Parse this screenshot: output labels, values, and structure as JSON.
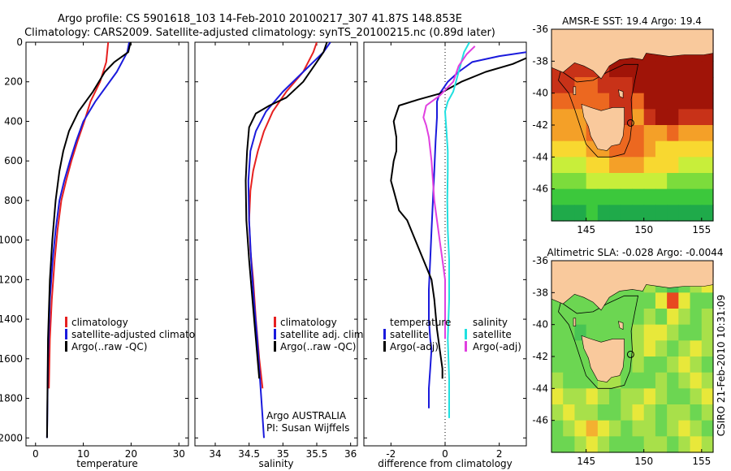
{
  "header": {
    "line1": "Argo profile: CS 5901618_103 14-Feb-2010 20100217_307 41.87S 148.853E",
    "line2": "Climatology: CARS2009. Satellite-adjusted climatology: synTS_20100215.nc (0.89d later)"
  },
  "side_label": "CSIRO 21-Feb-2010 10:31:09",
  "colors": {
    "climatology": "#e62020",
    "satellite": "#1a1adc",
    "argo": "#000000",
    "salinity_satellite": "#20e0e0",
    "salinity_argo": "#e040e0",
    "land": "#f9c99c"
  },
  "chart_data": [
    {
      "type": "line",
      "xlabel": "temperature",
      "x_ticks": [
        "0",
        "10",
        "20",
        "30"
      ],
      "xlim": [
        -2,
        32
      ],
      "y_ticks": [
        "0",
        "200",
        "400",
        "600",
        "800",
        "1000",
        "1200",
        "1400",
        "1600",
        "1800",
        "2000"
      ],
      "ylim": [
        2040,
        0
      ],
      "legend": [
        "climatology",
        "satellite-adjusted climatology",
        "Argo(..raw -QC)"
      ],
      "series": [
        {
          "name": "climatology",
          "color": "climatology",
          "x": [
            15.2,
            14.8,
            13.5,
            11.5,
            10.2,
            8.8,
            7.5,
            6.4,
            5.4,
            4.6,
            4.0,
            3.4,
            3.0,
            2.8
          ],
          "y": [
            0,
            100,
            200,
            300,
            400,
            500,
            600,
            700,
            800,
            950,
            1100,
            1300,
            1500,
            1750
          ]
        },
        {
          "name": "satellite-adjusted climatology",
          "color": "satellite",
          "x": [
            19.6,
            19.2,
            17.0,
            12.5,
            10.0,
            8.5,
            7.2,
            6.0,
            5.0,
            4.2,
            3.6,
            3.0,
            2.6,
            2.4
          ],
          "y": [
            0,
            50,
            150,
            300,
            400,
            500,
            600,
            700,
            800,
            950,
            1100,
            1300,
            1600,
            2000
          ]
        },
        {
          "name": "Argo(..raw -QC)",
          "color": "argo",
          "x": [
            19.9,
            19.4,
            16.5,
            14.5,
            12.0,
            9.0,
            7.0,
            5.8,
            5.0,
            4.2,
            3.5,
            3.0,
            2.6,
            2.4
          ],
          "y": [
            0,
            50,
            100,
            150,
            250,
            350,
            450,
            550,
            650,
            800,
            1000,
            1200,
            1500,
            2000
          ]
        }
      ]
    },
    {
      "type": "line",
      "xlabel": "salinity",
      "x_ticks": [
        "34",
        "34.5",
        "35",
        "35.5",
        "36"
      ],
      "xlim": [
        33.7,
        36.1
      ],
      "y_ticks": [],
      "ylim": [
        2040,
        0
      ],
      "legend": [
        "climatology",
        "satellite adj. clim.",
        "Argo(..raw -QC)"
      ],
      "annotation": [
        "Argo AUSTRALIA",
        "PI: Susan Wijffels"
      ],
      "series": [
        {
          "name": "climatology",
          "color": "climatology",
          "x": [
            35.5,
            35.45,
            35.3,
            35.05,
            34.85,
            34.72,
            34.63,
            34.56,
            34.52,
            34.5,
            34.52,
            34.56,
            34.6,
            34.65,
            34.7
          ],
          "y": [
            0,
            50,
            150,
            250,
            350,
            450,
            550,
            650,
            750,
            900,
            1050,
            1200,
            1400,
            1600,
            1750
          ]
        },
        {
          "name": "satellite adj. clim.",
          "color": "satellite",
          "x": [
            35.7,
            35.6,
            35.3,
            35.0,
            34.75,
            34.6,
            34.52,
            34.49,
            34.5,
            34.53,
            34.57,
            34.62,
            34.68,
            34.72
          ],
          "y": [
            0,
            50,
            150,
            250,
            350,
            450,
            550,
            700,
            900,
            1100,
            1300,
            1500,
            1800,
            2000
          ]
        },
        {
          "name": "Argo(..raw -QC)",
          "color": "argo",
          "x": [
            35.65,
            35.6,
            35.5,
            35.3,
            35.05,
            34.8,
            34.6,
            34.5,
            34.47,
            34.45,
            34.46,
            34.5,
            34.55,
            34.6,
            34.65
          ],
          "y": [
            0,
            50,
            100,
            200,
            280,
            320,
            360,
            430,
            550,
            700,
            900,
            1100,
            1300,
            1500,
            1700
          ]
        }
      ]
    },
    {
      "type": "line",
      "xlabel": "difference from climatology",
      "x_ticks": [
        "-2",
        "0",
        "2"
      ],
      "xlim": [
        -3,
        3
      ],
      "y_ticks": [],
      "ylim": [
        2040,
        0
      ],
      "zero_line": 0,
      "legend_left_title": "temperature",
      "legend_right_title": "salinity",
      "legend": [
        "satellite",
        "Argo(-adj)",
        "satellite",
        "Argo(-adj)"
      ],
      "series": [
        {
          "name": "satellite",
          "color": "satellite",
          "x": [
            3.0,
            2.0,
            1.0,
            0.5,
            0.1,
            -0.2,
            -0.3,
            -0.3,
            -0.35,
            -0.4,
            -0.45,
            -0.5,
            -0.55,
            -0.6,
            -0.6,
            -0.55,
            -0.5,
            -0.55,
            -0.6,
            -0.6
          ],
          "y": [
            50,
            70,
            100,
            150,
            200,
            260,
            300,
            380,
            500,
            650,
            800,
            950,
            1100,
            1250,
            1400,
            1500,
            1550,
            1650,
            1750,
            1850
          ]
        },
        {
          "name": "Argo(-adj)",
          "color": "argo",
          "x": [
            3.0,
            2.5,
            1.5,
            0.6,
            -0.2,
            -1.0,
            -1.7,
            -1.9,
            -1.8,
            -1.8,
            -1.9,
            -2.0,
            -1.9,
            -1.7,
            -1.4,
            -1.1,
            -0.8,
            -0.5,
            -0.4,
            -0.3,
            -0.2,
            -0.1,
            -0.1
          ],
          "y": [
            80,
            110,
            150,
            200,
            260,
            290,
            320,
            400,
            480,
            550,
            600,
            700,
            750,
            850,
            900,
            1000,
            1100,
            1200,
            1300,
            1450,
            1550,
            1650,
            1700
          ]
        },
        {
          "name": "satellite",
          "color": "salinity_satellite",
          "x": [
            0.9,
            0.7,
            0.5,
            0.3,
            0.1,
            0.0,
            0.05,
            0.1,
            0.1,
            0.08,
            0.1,
            0.15,
            0.15,
            0.1,
            0.15,
            0.15
          ],
          "y": [
            0,
            50,
            150,
            250,
            300,
            350,
            450,
            550,
            650,
            800,
            950,
            1100,
            1300,
            1500,
            1700,
            1900
          ]
        },
        {
          "name": "Argo(-adj)",
          "color": "salinity_argo",
          "x": [
            1.1,
            0.8,
            0.5,
            0.3,
            -0.2,
            -0.7,
            -0.8,
            -0.7,
            -0.6,
            -0.5,
            -0.45,
            -0.4,
            -0.3,
            -0.2,
            -0.1,
            0.0,
            0.0
          ],
          "y": [
            20,
            60,
            120,
            200,
            270,
            320,
            380,
            420,
            480,
            600,
            700,
            800,
            900,
            1000,
            1100,
            1200,
            1500
          ]
        }
      ]
    },
    {
      "type": "heatmap",
      "title": "AMSR-E SST: 19.4 Argo: 19.4",
      "x_ticks": [
        "145",
        "150",
        "155"
      ],
      "y_ticks": [
        "-36",
        "-38",
        "-40",
        "-42",
        "-44",
        "-46"
      ],
      "xlim": [
        142,
        156
      ],
      "ylim": [
        -48,
        -36
      ],
      "float_position": [
        148.853,
        -41.87
      ],
      "colors": [
        "#1faa4a",
        "#3cc83c",
        "#7cdc3c",
        "#c8ee3a",
        "#f8d830",
        "#f4a028",
        "#ec6820",
        "#c83218",
        "#a01408"
      ],
      "rows": [
        [
          8,
          8,
          8,
          8,
          8,
          8,
          8,
          8,
          8,
          8,
          8,
          8,
          8,
          8
        ],
        [
          8,
          8,
          8,
          8,
          8,
          8,
          8,
          8,
          8,
          8,
          8,
          8,
          8,
          8
        ],
        [
          7,
          7,
          7,
          7,
          7,
          8,
          8,
          8,
          8,
          8,
          8,
          8,
          8,
          8
        ],
        [
          7,
          7,
          6,
          6,
          7,
          7,
          7,
          8,
          8,
          8,
          8,
          8,
          8,
          8
        ],
        [
          6,
          6,
          6,
          6,
          6,
          7,
          7,
          6,
          8,
          8,
          8,
          8,
          8,
          8
        ],
        [
          5,
          5,
          5,
          6,
          6,
          6,
          7,
          5,
          7,
          8,
          8,
          7,
          7,
          7
        ],
        [
          5,
          5,
          5,
          6,
          6,
          6,
          6,
          6,
          5,
          5,
          6,
          5,
          5,
          5
        ],
        [
          4,
          4,
          4,
          5,
          5,
          6,
          6,
          6,
          5,
          4,
          4,
          4,
          4,
          4
        ],
        [
          3,
          3,
          3,
          4,
          4,
          5,
          5,
          5,
          4,
          4,
          4,
          3,
          3,
          3
        ],
        [
          2,
          2,
          2,
          3,
          3,
          3,
          3,
          3,
          3,
          3,
          2,
          2,
          2,
          2
        ],
        [
          1,
          1,
          1,
          1,
          1,
          1,
          1,
          1,
          1,
          1,
          1,
          1,
          1,
          1
        ],
        [
          0,
          0,
          0,
          1,
          0,
          0,
          0,
          0,
          0,
          0,
          0,
          0,
          0,
          0
        ]
      ]
    },
    {
      "type": "heatmap",
      "title": "Altimetric SLA: -0.028 Argo: -0.0044",
      "x_ticks": [
        "145",
        "150",
        "155"
      ],
      "y_ticks": [
        "-36",
        "-38",
        "-40",
        "-42",
        "-44",
        "-46"
      ],
      "xlim": [
        142,
        156
      ],
      "ylim": [
        -48,
        -36
      ],
      "float_position": [
        148.853,
        -41.87
      ],
      "colors": [
        "#2a9e4a",
        "#48c454",
        "#6cd652",
        "#a8e04a",
        "#e8e83a",
        "#f4b030",
        "#e84820",
        "#b01408"
      ],
      "rows": [
        [
          2,
          2,
          2,
          2,
          2,
          2,
          2,
          2,
          3,
          2,
          1,
          3,
          5,
          6
        ],
        [
          2,
          2,
          2,
          2,
          2,
          2,
          2,
          2,
          3,
          2,
          1,
          2,
          3,
          4
        ],
        [
          2,
          2,
          2,
          2,
          2,
          2,
          2,
          2,
          2,
          4,
          6,
          4,
          2,
          2
        ],
        [
          2,
          2,
          2,
          2,
          2,
          2,
          2,
          2,
          3,
          2,
          4,
          3,
          2,
          3
        ],
        [
          2,
          2,
          1,
          2,
          2,
          2,
          2,
          3,
          4,
          4,
          3,
          2,
          2,
          3
        ],
        [
          2,
          2,
          2,
          2,
          2,
          2,
          2,
          3,
          4,
          3,
          2,
          3,
          4,
          3
        ],
        [
          2,
          2,
          2,
          2,
          2,
          2,
          2,
          3,
          2,
          2,
          3,
          4,
          3,
          2
        ],
        [
          3,
          2,
          2,
          2,
          3,
          3,
          2,
          2,
          2,
          3,
          2,
          3,
          4,
          3
        ],
        [
          4,
          3,
          3,
          4,
          3,
          2,
          3,
          3,
          4,
          3,
          2,
          2,
          3,
          4
        ],
        [
          3,
          4,
          3,
          3,
          2,
          2,
          3,
          4,
          3,
          2,
          3,
          3,
          2,
          3
        ],
        [
          2,
          3,
          4,
          5,
          4,
          3,
          2,
          3,
          3,
          2,
          3,
          4,
          3,
          2
        ],
        [
          2,
          2,
          3,
          4,
          3,
          2,
          2,
          2,
          3,
          3,
          2,
          3,
          4,
          3
        ]
      ]
    }
  ]
}
